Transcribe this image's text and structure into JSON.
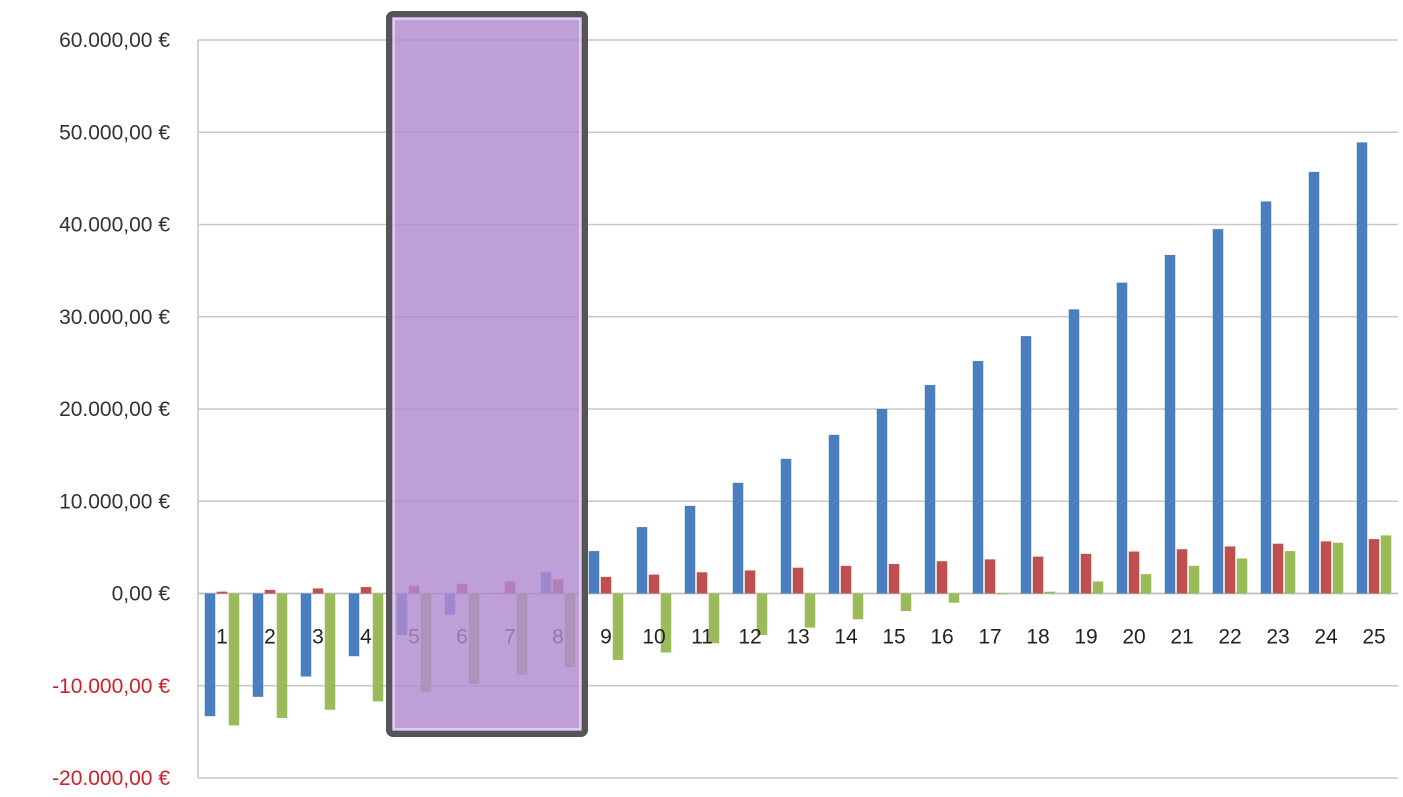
{
  "chart_data": {
    "type": "bar",
    "categories": [
      "1",
      "2",
      "3",
      "4",
      "5",
      "6",
      "7",
      "8",
      "9",
      "10",
      "11",
      "12",
      "13",
      "14",
      "15",
      "16",
      "17",
      "18",
      "19",
      "20",
      "21",
      "22",
      "23",
      "24",
      "25"
    ],
    "series": [
      {
        "color": "#4a7ebf",
        "values": [
          -13300,
          -11200,
          -9000,
          -6800,
          -4500,
          -2300,
          0,
          2300,
          4600,
          7200,
          9500,
          12000,
          14600,
          17200,
          20000,
          22600,
          25200,
          27900,
          30800,
          33700,
          36700,
          39500,
          42500,
          45700,
          48900
        ]
      },
      {
        "color": "#c0504d",
        "values": [
          200,
          400,
          550,
          700,
          850,
          1050,
          1300,
          1550,
          1800,
          2050,
          2300,
          2500,
          2800,
          3000,
          3200,
          3500,
          3700,
          4000,
          4300,
          4550,
          4800,
          5100,
          5400,
          5650,
          5900
        ]
      },
      {
        "color": "#9bbb59",
        "values": [
          -14300,
          -13500,
          -12600,
          -11700,
          -10700,
          -9800,
          -8800,
          -8000,
          -7200,
          -6400,
          -5400,
          -4500,
          -3700,
          -2800,
          -1900,
          -1000,
          -100,
          200,
          1300,
          2100,
          3000,
          3800,
          4600,
          5500,
          6300
        ]
      }
    ],
    "ylim": [
      -20000,
      60000
    ],
    "yticks": [
      60000,
      50000,
      40000,
      30000,
      20000,
      10000,
      0,
      -10000,
      -20000
    ],
    "ytick_labels": [
      "60.000,00 €",
      "50.000,00 €",
      "40.000,00 €",
      "30.000,00 €",
      "20.000,00 €",
      "10.000,00 €",
      "0,00 €",
      "-10.000,00 €",
      "-20.000,00 €"
    ],
    "ytick_positive_color": "#333333",
    "ytick_negative_color": "#d0202a",
    "grid": true,
    "legend": "none",
    "highlight": {
      "categories": [
        "5",
        "6",
        "7",
        "8"
      ],
      "fill": "#b08ad0",
      "border": "#555555"
    }
  }
}
